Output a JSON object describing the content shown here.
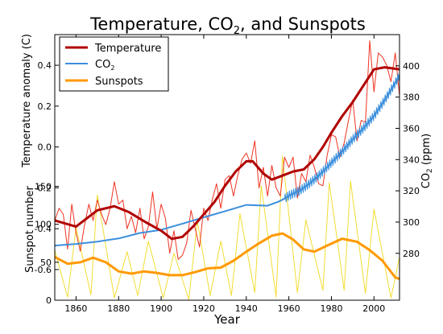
{
  "chart_data": {
    "type": "line",
    "title": "Temperature, CO",
    "title_sub": "2",
    "title_tail": ", and Sunspots",
    "xlabel": "Year",
    "ylabel_left_top": "Temperature anomaly (C)",
    "ylabel_left_bottom": "Sunspot number",
    "ylabel_right": "CO",
    "ylabel_right_sub": "2",
    "ylabel_right_tail": " (ppm)",
    "xlim": [
      1850,
      2012
    ],
    "x_ticks": [
      "1860",
      "1880",
      "1900",
      "1920",
      "1940",
      "1960",
      "1980",
      "2000"
    ],
    "temp_axis": {
      "ylim": [
        -0.75,
        0.55
      ],
      "ticks": [
        "0.4",
        "0.2",
        "0.0",
        "-0.2",
        "-0.4",
        "-0.6"
      ]
    },
    "co2_axis": {
      "ylim": [
        250,
        420
      ],
      "ticks": [
        "400",
        "380",
        "360",
        "340",
        "320",
        "300",
        "280"
      ]
    },
    "sunspot_axis": {
      "ylim": [
        0,
        350
      ],
      "ticks": [
        "150",
        "100",
        "50",
        "0"
      ]
    },
    "legend": {
      "placement": "top-left",
      "items": [
        {
          "label": "Temperature",
          "sub": "",
          "color": "#b00000"
        },
        {
          "label": "CO",
          "sub": "2",
          "color": "#3b8fdc"
        },
        {
          "label": "Sunspots",
          "sub": "",
          "color": "#ff9900"
        }
      ]
    },
    "grid": false,
    "series": [
      {
        "name": "Temperature",
        "axis": "temp",
        "color": "#b00000",
        "width": 3,
        "x": [
          1850,
          1860,
          1870,
          1878,
          1885,
          1893,
          1900,
          1905,
          1910,
          1915,
          1920,
          1925,
          1930,
          1935,
          1940,
          1943,
          1948,
          1952,
          1957,
          1962,
          1967,
          1972,
          1976,
          1980,
          1985,
          1990,
          1995,
          2000,
          2005,
          2012
        ],
        "y": [
          -0.36,
          -0.39,
          -0.31,
          -0.29,
          -0.32,
          -0.37,
          -0.41,
          -0.45,
          -0.44,
          -0.39,
          -0.33,
          -0.27,
          -0.19,
          -0.12,
          -0.07,
          -0.07,
          -0.13,
          -0.16,
          -0.14,
          -0.12,
          -0.11,
          -0.06,
          0.0,
          0.07,
          0.15,
          0.22,
          0.3,
          0.38,
          0.39,
          0.38
        ]
      },
      {
        "name": "",
        "axis": "temp",
        "color": "#ee3322",
        "width": 1,
        "x": [
          1850,
          1852,
          1854,
          1856,
          1858,
          1860,
          1862,
          1864,
          1866,
          1868,
          1870,
          1872,
          1874,
          1876,
          1878,
          1880,
          1882,
          1884,
          1886,
          1888,
          1890,
          1892,
          1894,
          1896,
          1898,
          1900,
          1902,
          1904,
          1906,
          1908,
          1910,
          1912,
          1914,
          1916,
          1918,
          1920,
          1922,
          1924,
          1926,
          1928,
          1930,
          1932,
          1934,
          1936,
          1938,
          1940,
          1942,
          1944,
          1946,
          1948,
          1950,
          1952,
          1954,
          1956,
          1958,
          1960,
          1962,
          1964,
          1966,
          1968,
          1970,
          1972,
          1974,
          1976,
          1978,
          1980,
          1982,
          1984,
          1986,
          1988,
          1990,
          1992,
          1994,
          1996,
          1998,
          2000,
          2002,
          2004,
          2006,
          2008,
          2010,
          2012
        ],
        "y": [
          -0.36,
          -0.3,
          -0.33,
          -0.5,
          -0.28,
          -0.42,
          -0.51,
          -0.38,
          -0.28,
          -0.36,
          -0.26,
          -0.33,
          -0.38,
          -0.3,
          -0.17,
          -0.28,
          -0.26,
          -0.4,
          -0.34,
          -0.42,
          -0.3,
          -0.45,
          -0.39,
          -0.22,
          -0.4,
          -0.28,
          -0.35,
          -0.52,
          -0.41,
          -0.55,
          -0.53,
          -0.47,
          -0.31,
          -0.4,
          -0.49,
          -0.3,
          -0.36,
          -0.26,
          -0.18,
          -0.3,
          -0.16,
          -0.14,
          -0.24,
          -0.14,
          -0.06,
          -0.03,
          -0.08,
          0.03,
          -0.2,
          -0.1,
          -0.24,
          -0.09,
          -0.2,
          -0.24,
          -0.05,
          -0.1,
          -0.05,
          -0.25,
          -0.13,
          -0.17,
          -0.04,
          -0.1,
          -0.18,
          -0.19,
          -0.04,
          0.06,
          0.05,
          -0.05,
          0.02,
          0.13,
          0.23,
          0.03,
          0.13,
          0.12,
          0.52,
          0.27,
          0.46,
          0.44,
          0.4,
          0.32,
          0.46,
          0.25
        ]
      },
      {
        "name": "CO2",
        "axis": "co2",
        "color": "#3b8fdc",
        "width": 2,
        "x": [
          1850,
          1860,
          1870,
          1880,
          1890,
          1900,
          1910,
          1920,
          1930,
          1940,
          1950,
          1955,
          1958,
          1960,
          1965,
          1970,
          1975,
          1980,
          1985,
          1990,
          1995,
          2000,
          2005,
          2010,
          2012
        ],
        "y": [
          285,
          286,
          287.5,
          289.5,
          293,
          295,
          299,
          303,
          307,
          311,
          310.5,
          313,
          315,
          317,
          320,
          325,
          331,
          338,
          345,
          353,
          360,
          368,
          378,
          389,
          394
        ]
      },
      {
        "name": "Sunspots",
        "axis": "sun",
        "color": "#ff9900",
        "width": 3,
        "x": [
          1850,
          1856,
          1862,
          1868,
          1874,
          1880,
          1886,
          1892,
          1898,
          1904,
          1910,
          1916,
          1922,
          1928,
          1934,
          1940,
          1946,
          1952,
          1957,
          1962,
          1967,
          1972,
          1978,
          1985,
          1992,
          1998,
          2004,
          2010,
          2012
        ],
        "y": [
          57,
          48,
          50,
          56,
          50,
          38,
          35,
          38,
          36,
          33,
          33,
          37,
          42,
          43,
          52,
          64,
          75,
          85,
          88,
          80,
          67,
          64,
          72,
          81,
          77,
          66,
          52,
          30,
          28
        ]
      },
      {
        "name": "",
        "axis": "sun",
        "color": "#f2dd33",
        "width": 1,
        "x": [
          1850,
          1856,
          1860,
          1867,
          1870,
          1878,
          1884,
          1889,
          1894,
          1901,
          1906,
          1913,
          1917,
          1923,
          1928,
          1933,
          1937,
          1944,
          1947,
          1954,
          1957,
          1964,
          1968,
          1976,
          1979,
          1986,
          1989,
          1996,
          2000,
          2008,
          2012
        ],
        "y": [
          66,
          4,
          96,
          7,
          139,
          3,
          64,
          6,
          78,
          3,
          62,
          1,
          104,
          6,
          78,
          6,
          114,
          10,
          151,
          4,
          190,
          10,
          106,
          13,
          155,
          13,
          157,
          9,
          120,
          3,
          57
        ]
      }
    ]
  }
}
